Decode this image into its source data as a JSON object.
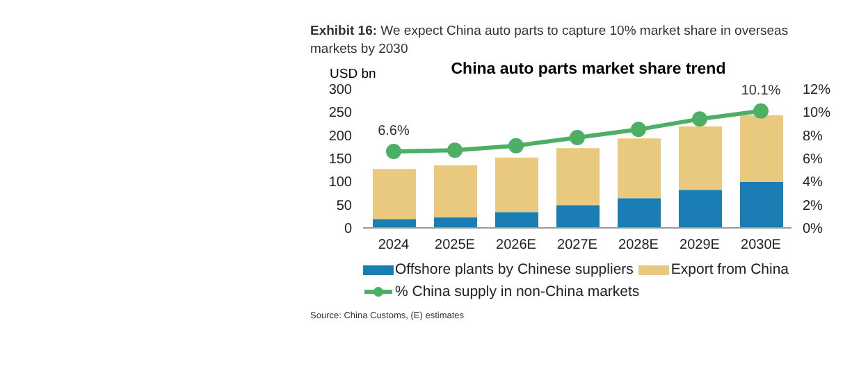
{
  "chart_data": {
    "type": "bar",
    "title": "China auto parts market share trend",
    "subtitle": "Exhibit 16:  We expect China auto parts to capture 10% market share in overseas markets by 2030",
    "ylabel": "USD bn",
    "categories": [
      "2024",
      "2025E",
      "2026E",
      "2027E",
      "2028E",
      "2029E",
      "2030E"
    ],
    "stacked": true,
    "series": [
      {
        "name": "Offshore plants by Chinese suppliers",
        "color": "#1a7db3",
        "values": [
          19,
          23,
          34,
          49,
          64,
          82,
          99
        ]
      },
      {
        "name": "Export from China",
        "color": "#e8c97d",
        "values": [
          108,
          112,
          118,
          123,
          129,
          137,
          144
        ]
      },
      {
        "name": "% China supply in non-China markets",
        "type": "line",
        "axis": "y2",
        "color": "#4caf64",
        "marker": "circle",
        "values": [
          6.6,
          6.7,
          7.1,
          7.8,
          8.5,
          9.4,
          10.1
        ],
        "value_labels": [
          "6.6%",
          null,
          null,
          null,
          null,
          null,
          "10.1%"
        ]
      }
    ],
    "ylim": [
      0,
      300
    ],
    "yticks": [
      0,
      50,
      100,
      150,
      200,
      250,
      300
    ],
    "y2lim": [
      0,
      12
    ],
    "y2ticks": [
      {
        "value": 0,
        "label": "0%"
      },
      {
        "value": 2,
        "label": "2%"
      },
      {
        "value": 4,
        "label": "4%"
      },
      {
        "value": 6,
        "label": "6%"
      },
      {
        "value": 8,
        "label": "8%"
      },
      {
        "value": 10,
        "label": "10%"
      },
      {
        "value": 12,
        "label": "12%"
      }
    ],
    "legend": "bottom",
    "grid": false,
    "annotations": [
      "Source: China Customs, (E) estimates"
    ]
  }
}
